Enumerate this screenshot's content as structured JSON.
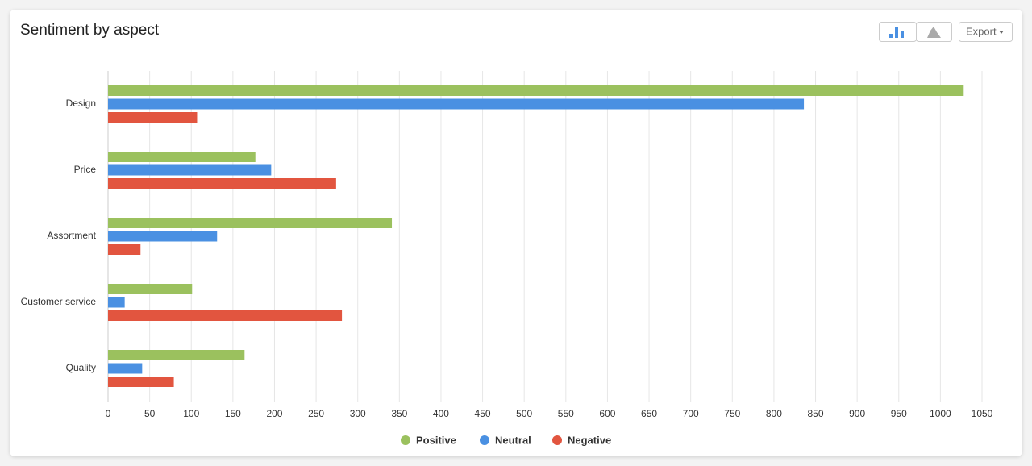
{
  "chart_data": {
    "type": "hbar",
    "title": "Sentiment by aspect",
    "categories": [
      "Design",
      "Price",
      "Assortment",
      "Customer service",
      "Quality"
    ],
    "series": [
      {
        "name": "Positive",
        "color": "#9bc15e",
        "values": [
          1028,
          177,
          341,
          101,
          164
        ]
      },
      {
        "name": "Neutral",
        "color": "#4a90e2",
        "values": [
          836,
          196,
          131,
          20,
          41
        ]
      },
      {
        "name": "Negative",
        "color": "#e2553f",
        "values": [
          107,
          274,
          39,
          281,
          79
        ]
      }
    ],
    "xlim": [
      0,
      1050
    ],
    "xticks": [
      0,
      50,
      100,
      150,
      200,
      250,
      300,
      350,
      400,
      450,
      500,
      550,
      600,
      650,
      700,
      750,
      800,
      850,
      900,
      950,
      1000,
      1050
    ],
    "grid": true,
    "legend": "bottom"
  },
  "toolbar": {
    "export": "Export"
  }
}
